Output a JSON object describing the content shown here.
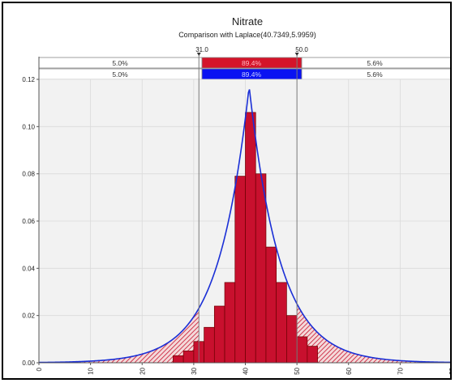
{
  "chart_data": {
    "type": "bar",
    "title": "Nitrate",
    "subtitle": "Comparison with Laplace(40.7349,5.9959)",
    "xlabel": "",
    "ylabel": "",
    "xlim": [
      0,
      80
    ],
    "ylim": [
      0,
      0.12
    ],
    "grid": true,
    "x_ticks": [
      0,
      10,
      20,
      30,
      40,
      50,
      60,
      70,
      80
    ],
    "y_ticks": [
      0.0,
      0.02,
      0.04,
      0.06,
      0.08,
      0.1,
      0.12
    ],
    "x_tick_labels": [
      "0",
      "10",
      "20",
      "30",
      "40",
      "50",
      "60",
      "70",
      "80"
    ],
    "y_tick_labels": [
      "0.00",
      "0.02",
      "0.04",
      "0.06",
      "0.08",
      "0.10",
      "0.12"
    ],
    "bin_width": 2,
    "bins": [
      {
        "x0": 26,
        "x1": 28,
        "value": 0.003
      },
      {
        "x0": 28,
        "x1": 30,
        "value": 0.005
      },
      {
        "x0": 30,
        "x1": 32,
        "value": 0.009
      },
      {
        "x0": 32,
        "x1": 34,
        "value": 0.015
      },
      {
        "x0": 34,
        "x1": 36,
        "value": 0.024
      },
      {
        "x0": 36,
        "x1": 38,
        "value": 0.034
      },
      {
        "x0": 38,
        "x1": 40,
        "value": 0.079
      },
      {
        "x0": 40,
        "x1": 42,
        "value": 0.106
      },
      {
        "x0": 42,
        "x1": 44,
        "value": 0.08
      },
      {
        "x0": 44,
        "x1": 46,
        "value": 0.049
      },
      {
        "x0": 46,
        "x1": 48,
        "value": 0.034
      },
      {
        "x0": 48,
        "x1": 50,
        "value": 0.02
      },
      {
        "x0": 50,
        "x1": 52,
        "value": 0.011
      },
      {
        "x0": 52,
        "x1": 54,
        "value": 0.007
      }
    ],
    "fitted_curve": {
      "distribution": "Laplace",
      "mu": 40.7349,
      "b": 5.9959,
      "peak": 0.117
    },
    "markers": {
      "lower": 31.0,
      "upper": 50.0,
      "lower_label": "31.0",
      "upper_label": "50.0"
    },
    "probability_bands": [
      {
        "row": "input",
        "left": "5.0%",
        "middle": "89.4%",
        "right": "5.6%"
      },
      {
        "row": "fit",
        "left": "5.0%",
        "middle": "89.4%",
        "right": "5.6%"
      }
    ],
    "colors": {
      "bars": "#c8102e",
      "bar_edge": "#6b0000",
      "curve": "#1a2fd6",
      "band_input": "#d4142a",
      "band_fit": "#0a12f2",
      "marker_line": "#7a7a7a",
      "plot_bg": "#f2f2f2",
      "grid": "#dadada"
    }
  }
}
